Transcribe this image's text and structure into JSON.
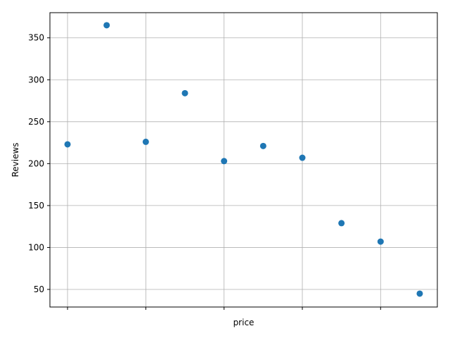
{
  "chart_data": {
    "type": "scatter",
    "xlabel": "price",
    "ylabel": "Reviews",
    "x_tick_labels_shown": false,
    "x": [
      0,
      1,
      2,
      3,
      4,
      5,
      6,
      7,
      8,
      9
    ],
    "y": [
      223,
      365,
      226,
      284,
      203,
      221,
      207,
      129,
      107,
      45
    ],
    "xlim": [
      -0.45,
      9.45
    ],
    "ylim": [
      29,
      380
    ],
    "y_ticks": [
      50,
      100,
      150,
      200,
      250,
      300,
      350
    ],
    "x_ticks": [
      0,
      2,
      4,
      6,
      8
    ],
    "grid": true,
    "marker_color": "#1f77b4",
    "grid_color": "#b0b0b0"
  }
}
